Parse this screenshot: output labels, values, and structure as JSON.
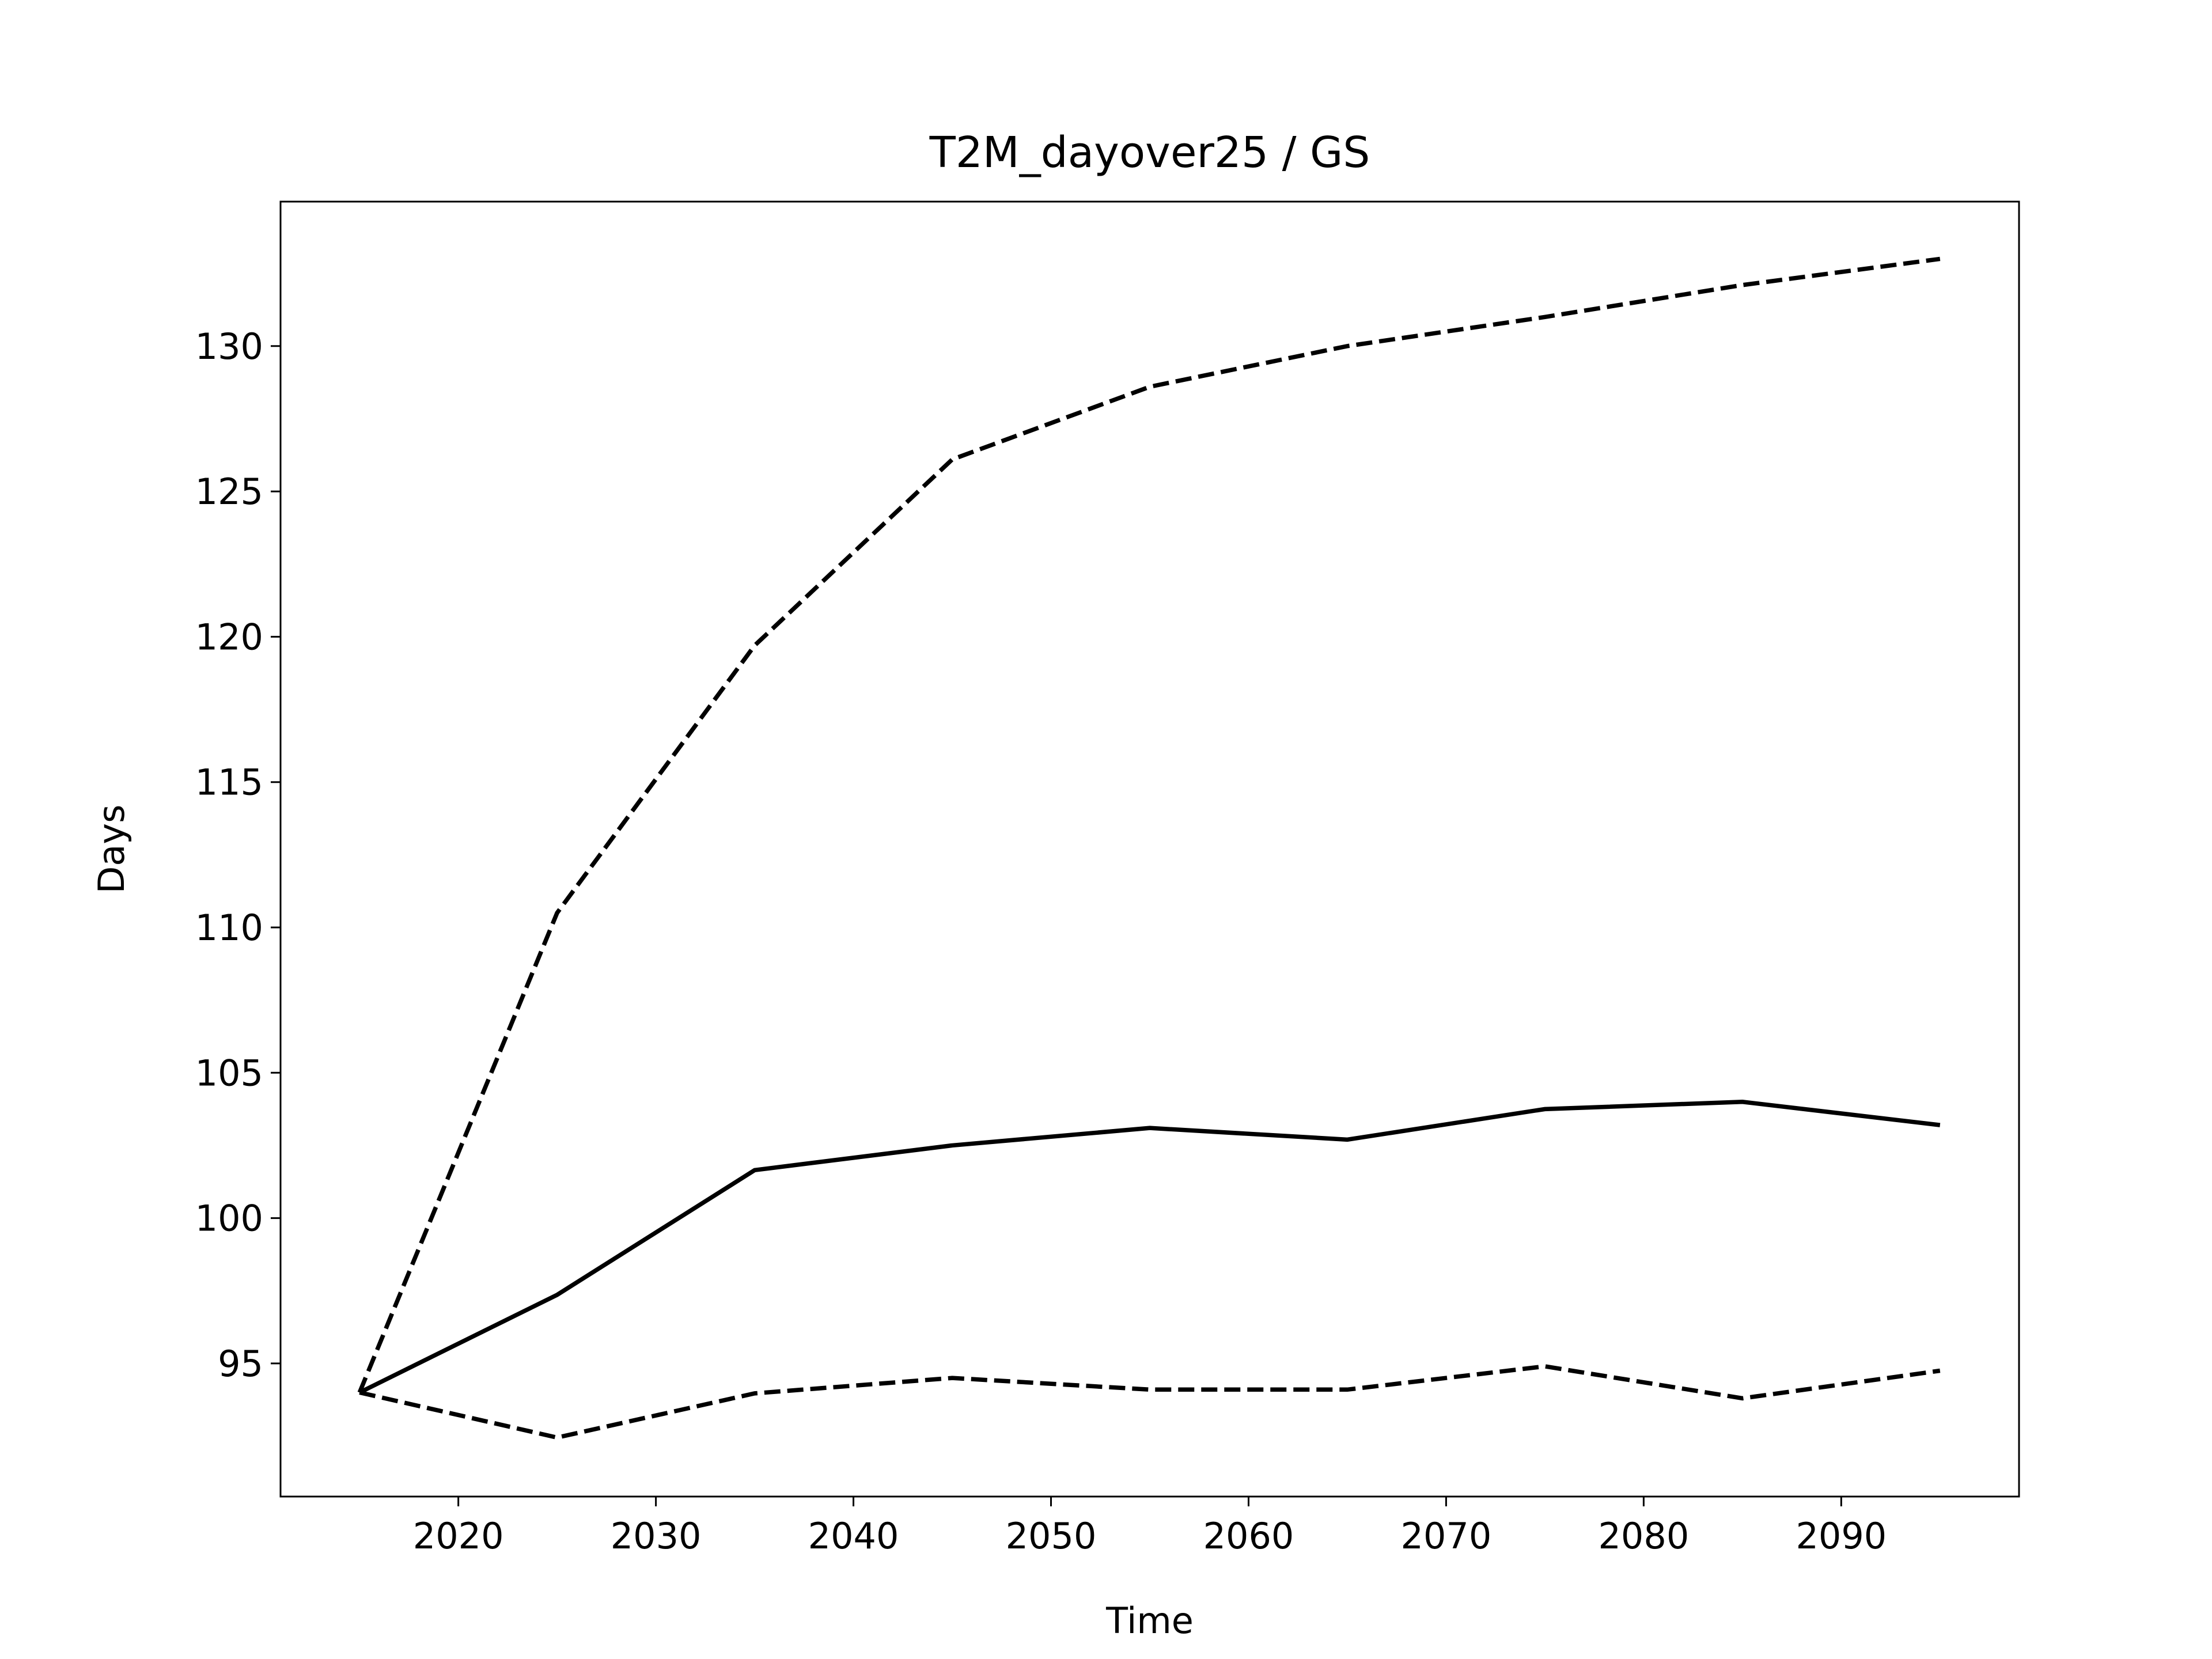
{
  "chart_data": {
    "type": "line",
    "title": "T2M_dayover25 / GS",
    "xlabel": "Time",
    "ylabel": "Days",
    "x": [
      2015,
      2025,
      2035,
      2045,
      2055,
      2065,
      2075,
      2085,
      2095
    ],
    "series": [
      {
        "color": "#000000",
        "dashed": false,
        "values": [
          94.0,
          97.36,
          101.65,
          102.5,
          103.1,
          102.7,
          103.75,
          104.0,
          103.2
        ]
      },
      {
        "color": "#000000",
        "dashed": true,
        "values": [
          94.0,
          110.5,
          119.7,
          126.1,
          128.6,
          130.0,
          131.0,
          132.1,
          133.0
        ]
      },
      {
        "color": "#000000",
        "dashed": true,
        "values": [
          94.0,
          92.45,
          93.97,
          94.5,
          94.1,
          94.1,
          94.9,
          93.8,
          94.75
        ]
      }
    ],
    "xlim": [
      2011,
      2099
    ],
    "xticks": [
      2020,
      2030,
      2040,
      2050,
      2060,
      2070,
      2080,
      2090
    ],
    "ylim": [
      90.42,
      134.97
    ],
    "yticks": [
      95,
      100,
      105,
      110,
      115,
      120,
      125,
      130
    ]
  }
}
